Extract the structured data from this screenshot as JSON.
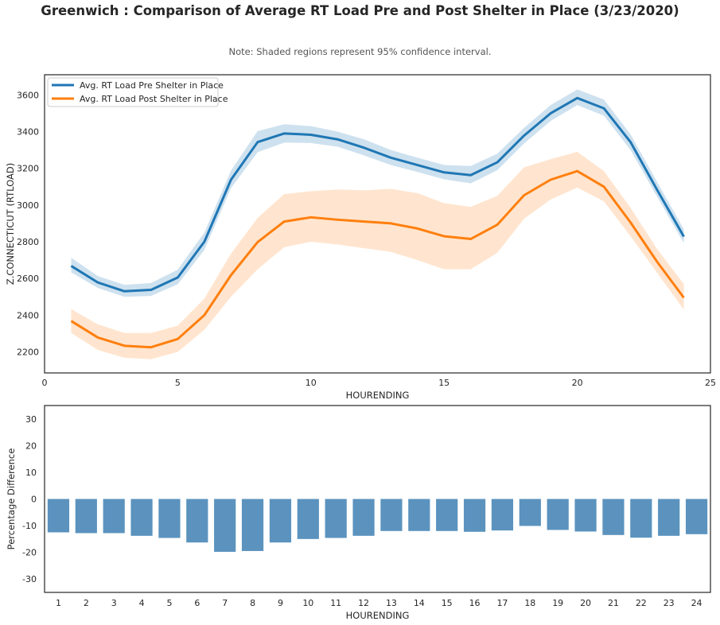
{
  "title": "Greenwich : Comparison of Average RT Load Pre and Post Shelter in Place (3/23/2020)",
  "note": "Note: Shaded regions represent 95% confidence interval.",
  "colors": {
    "pre": "#1f77b4",
    "post": "#ff7f0e",
    "bar": "#5b93be",
    "axis": "#262626"
  },
  "chart_data": [
    {
      "type": "line",
      "xlabel": "HOURENDING",
      "ylabel": "Z.CONNECTICUT (RTLOAD)",
      "xlim": [
        0,
        25
      ],
      "ylim": [
        2085,
        3710
      ],
      "xticks": [
        0,
        5,
        10,
        15,
        20,
        25
      ],
      "yticks": [
        2200,
        2400,
        2600,
        2800,
        3000,
        3200,
        3400,
        3600
      ],
      "legend_position": "upper-left",
      "grid": false,
      "x": [
        1,
        2,
        3,
        4,
        5,
        6,
        7,
        8,
        9,
        10,
        11,
        12,
        13,
        14,
        15,
        16,
        17,
        18,
        19,
        20,
        21,
        22,
        23,
        24
      ],
      "series": [
        {
          "name": "Avg. RT Load Pre Shelter in Place",
          "color_key": "pre",
          "values": [
            2668,
            2578,
            2530,
            2538,
            2605,
            2800,
            3138,
            3343,
            3390,
            3383,
            3358,
            3312,
            3258,
            3218,
            3178,
            3163,
            3233,
            3378,
            3500,
            3583,
            3527,
            3343,
            3082,
            2828
          ],
          "ci_low": [
            2633,
            2548,
            2500,
            2505,
            2568,
            2755,
            3092,
            3288,
            3340,
            3338,
            3318,
            3270,
            3218,
            3180,
            3140,
            3118,
            3190,
            3335,
            3458,
            3545,
            3487,
            3300,
            3045,
            2793
          ],
          "ci_high": [
            2713,
            2613,
            2565,
            2575,
            2648,
            2850,
            3188,
            3403,
            3440,
            3430,
            3400,
            3358,
            3300,
            3258,
            3218,
            3213,
            3280,
            3420,
            3545,
            3630,
            3575,
            3385,
            3125,
            2868
          ]
        },
        {
          "name": "Avg. RT Load Post Shelter in Place",
          "color_key": "post",
          "values": [
            2368,
            2278,
            2233,
            2225,
            2270,
            2400,
            2618,
            2798,
            2910,
            2933,
            2920,
            2910,
            2900,
            2872,
            2830,
            2815,
            2893,
            3053,
            3138,
            3185,
            3100,
            2905,
            2690,
            2495
          ],
          "ci_low": [
            2303,
            2210,
            2168,
            2160,
            2200,
            2320,
            2500,
            2650,
            2770,
            2800,
            2785,
            2765,
            2745,
            2700,
            2650,
            2650,
            2740,
            2925,
            3030,
            3095,
            3020,
            2830,
            2630,
            2430
          ],
          "ci_high": [
            2433,
            2350,
            2303,
            2303,
            2343,
            2490,
            2735,
            2930,
            3060,
            3075,
            3085,
            3080,
            3088,
            3065,
            3010,
            2990,
            3050,
            3205,
            3250,
            3290,
            3185,
            2985,
            2760,
            2570
          ]
        }
      ]
    },
    {
      "type": "bar",
      "xlabel": "HOURENDING",
      "ylabel": "Percentage Difference",
      "ylim": [
        -35,
        35
      ],
      "yticks": [
        -30,
        -20,
        -10,
        0,
        10,
        20,
        30
      ],
      "grid": false,
      "categories": [
        "1",
        "2",
        "3",
        "4",
        "5",
        "6",
        "7",
        "8",
        "9",
        "10",
        "11",
        "12",
        "13",
        "14",
        "15",
        "16",
        "17",
        "18",
        "19",
        "20",
        "21",
        "22",
        "23",
        "24"
      ],
      "values": [
        -12.5,
        -12.8,
        -12.8,
        -13.8,
        -14.6,
        -16.3,
        -19.8,
        -19.5,
        -16.3,
        -15.0,
        -14.6,
        -13.8,
        -12.0,
        -12.0,
        -12.0,
        -12.3,
        -11.8,
        -10.1,
        -11.6,
        -12.2,
        -13.5,
        -14.5,
        -13.8,
        -13.2
      ]
    }
  ]
}
